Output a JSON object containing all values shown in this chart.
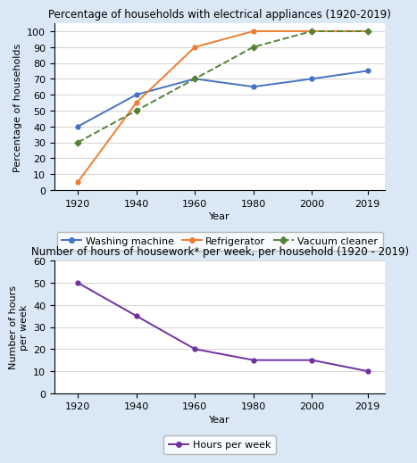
{
  "years": [
    1920,
    1940,
    1960,
    1980,
    2000,
    2019
  ],
  "washing_machine": [
    40,
    60,
    70,
    65,
    70,
    75
  ],
  "refrigerator": [
    5,
    55,
    90,
    100,
    100,
    100
  ],
  "vacuum_cleaner": [
    30,
    50,
    70,
    90,
    100,
    100
  ],
  "hours_per_week": [
    50,
    35,
    20,
    15,
    15,
    10
  ],
  "chart1_title": "Percentage of households with electrical appliances (1920-2019)",
  "chart2_title": "Number of hours of housework* per week, per household (1920 - 2019)",
  "ylabel1": "Percentage of households",
  "ylabel2": "Number of hours\nper week",
  "xlabel": "Year",
  "ylim1": [
    0,
    105
  ],
  "ylim2": [
    0,
    60
  ],
  "yticks1": [
    0,
    10,
    20,
    30,
    40,
    50,
    60,
    70,
    80,
    90,
    100
  ],
  "yticks2": [
    0,
    10,
    20,
    30,
    40,
    50,
    60
  ],
  "color_washing": "#4472C4",
  "color_fridge": "#ED7D31",
  "color_vacuum": "#548235",
  "color_hours": "#7030A0",
  "bg_color": "#DAE8F5",
  "plot_bg": "#FFFFFF",
  "legend1_labels": [
    "Washing machine",
    "Refrigerator",
    "Vacuum cleaner"
  ],
  "legend2_label": "Hours per week",
  "title_fontsize": 8.5,
  "axis_fontsize": 8,
  "tick_fontsize": 8,
  "legend_fontsize": 8
}
